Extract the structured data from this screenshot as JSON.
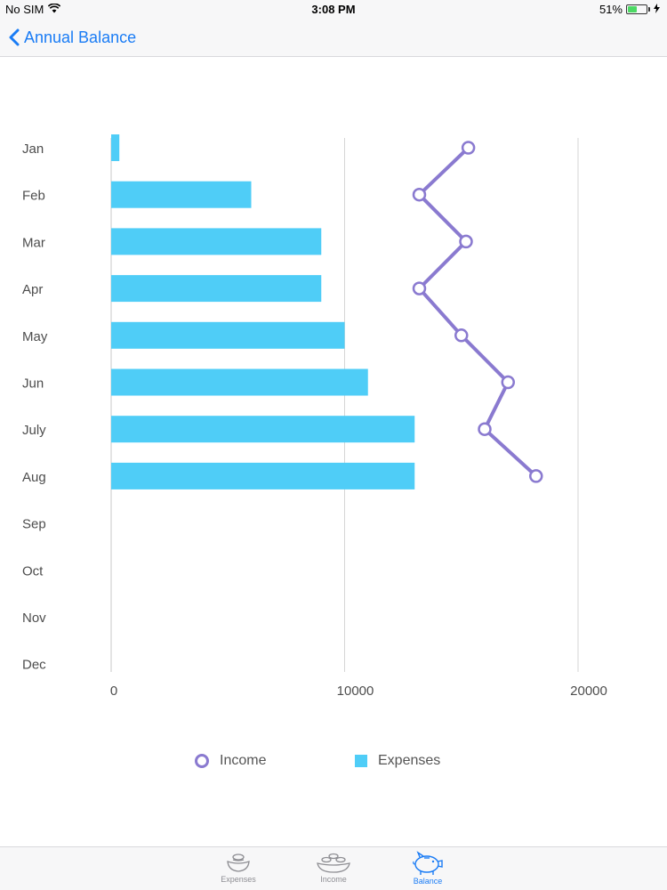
{
  "status_bar": {
    "carrier": "No SIM",
    "time": "3:08 PM",
    "battery": "51%",
    "battery_level": 0.51
  },
  "nav": {
    "back_label": "Annual Balance"
  },
  "colors": {
    "accent": "#1a7cf5",
    "income": "#8a7ad0",
    "expenses": "#4fcdf7"
  },
  "legend": {
    "income_label": "Income",
    "expenses_label": "Expenses"
  },
  "tabs": [
    {
      "label": "Expenses",
      "icon": "coins-bowl-icon",
      "active": false
    },
    {
      "label": "Income",
      "icon": "money-stack-icon",
      "active": false
    },
    {
      "label": "Balance",
      "icon": "piggy-bank-icon",
      "active": true
    }
  ],
  "chart_data": {
    "type": "bar",
    "orientation": "horizontal",
    "categories": [
      "Jan",
      "Feb",
      "Mar",
      "Apr",
      "May",
      "Jun",
      "July",
      "Aug",
      "Sep",
      "Oct",
      "Nov",
      "Dec"
    ],
    "series": [
      {
        "name": "Expenses",
        "type": "bar",
        "values": [
          350,
          6000,
          9000,
          9000,
          10000,
          11000,
          13000,
          13000,
          null,
          null,
          null,
          null
        ]
      },
      {
        "name": "Income",
        "type": "line",
        "values": [
          15300,
          13200,
          15200,
          13200,
          15000,
          17000,
          16000,
          18200,
          null,
          null,
          null,
          null
        ]
      }
    ],
    "xlim": [
      0,
      23000
    ],
    "x_ticks": [
      0,
      10000,
      20000
    ],
    "x_tick_labels": [
      "0",
      "10000",
      "20000"
    ],
    "grid": true,
    "legend_position": "bottom"
  }
}
